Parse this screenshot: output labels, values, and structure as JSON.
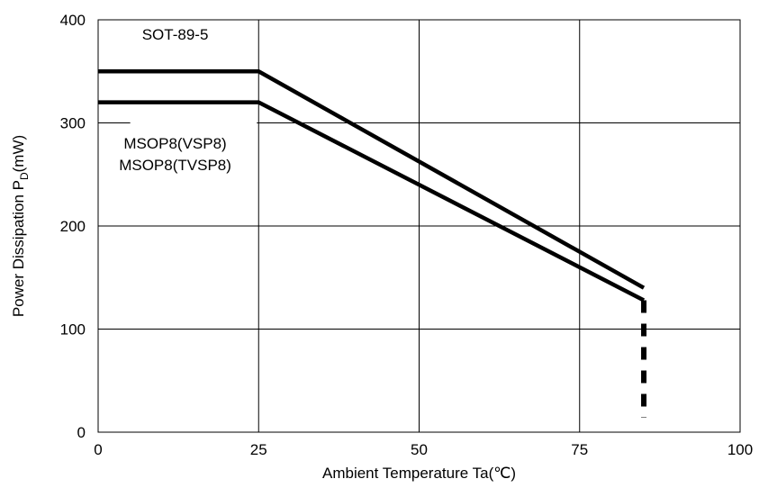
{
  "chart_data": {
    "type": "line",
    "xlabel": "Ambient Temperature Ta(℃)",
    "ylabel_main": "Power Dissipation P",
    "ylabel_sub": "D",
    "ylabel_unit": "(mW)",
    "xlim": [
      0,
      100
    ],
    "ylim": [
      0,
      400
    ],
    "xticks": [
      0,
      25,
      50,
      75,
      100
    ],
    "yticks": [
      0,
      100,
      200,
      300,
      400
    ],
    "grid": true,
    "series": [
      {
        "name": "SOT-89-5",
        "x": [
          0,
          25,
          85
        ],
        "y": [
          350,
          350,
          140
        ]
      },
      {
        "name": "MSOP8(VSP8) / MSOP8(TVSP8)",
        "x": [
          0,
          25,
          85
        ],
        "y": [
          320,
          320,
          128
        ]
      }
    ],
    "dashed_drop": {
      "x": 85,
      "from_y": 128,
      "to_y": 0
    },
    "annotations": [
      {
        "text": "SOT-89-5",
        "x": 12,
        "y": 381
      },
      {
        "text": "MSOP8(VSP8)",
        "x": 12,
        "y": 275
      },
      {
        "text": "MSOP8(TVSP8)",
        "x": 12,
        "y": 254
      }
    ]
  }
}
